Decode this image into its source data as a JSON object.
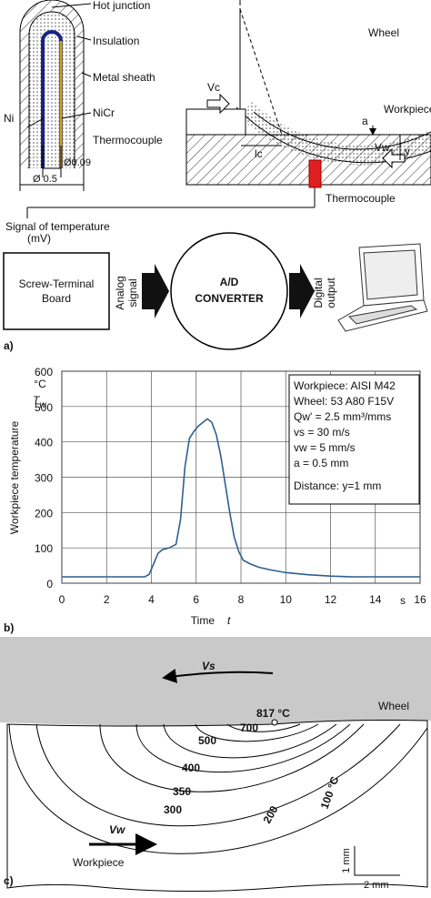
{
  "panel_a": {
    "label": "a)",
    "probe": {
      "hot_junction": "Hot junction",
      "insulation": "Insulation",
      "metal_sheath": "Metal sheath",
      "ni": "Ni",
      "nicr": "NiCr",
      "thermocouple": "Thermocouple",
      "d_inner": "Ø0.09",
      "d_outer": "Ø 0.5"
    },
    "setup": {
      "wheel": "Wheel",
      "vc": "Vc",
      "a": "a",
      "workpiece": "Workpiece",
      "y": "y",
      "lc": "lc",
      "vw": "Vw",
      "thermocouple": "Thermocouple"
    },
    "signal": [
      "Signal of temperature",
      "(mV)"
    ],
    "board": [
      "Screw-Terminal",
      "Board"
    ],
    "analog": [
      "Analog",
      "signal"
    ],
    "converter": [
      "A/D",
      "CONVERTER"
    ],
    "digital": [
      "Digital",
      "output"
    ]
  },
  "chart_data": {
    "type": "line",
    "label": "b)",
    "y_label": "Workpiece  temperature",
    "y_symbol": "T",
    "y_symbol_sub": "w",
    "y_unit": "°C",
    "x_label": "Time",
    "x_symbol": "t",
    "x_unit": "s",
    "x": [
      0,
      3.7,
      3.9,
      4.1,
      4.3,
      4.5,
      4.8,
      5.1,
      5.3,
      5.5,
      5.7,
      5.9,
      6.1,
      6.3,
      6.5,
      6.7,
      6.9,
      7.1,
      7.3,
      7.5,
      7.7,
      7.9,
      8.1,
      8.4,
      8.8,
      9.3,
      10,
      11,
      12,
      13,
      16
    ],
    "series": [
      {
        "name": "Workpiece temperature",
        "color": "#2f5f8f",
        "values": [
          18,
          18,
          25,
          55,
          85,
          95,
          100,
          110,
          180,
          330,
          410,
          430,
          445,
          455,
          465,
          455,
          420,
          360,
          280,
          200,
          130,
          90,
          65,
          55,
          45,
          38,
          30,
          24,
          20,
          18,
          18
        ]
      }
    ],
    "xlim": [
      0,
      16
    ],
    "xticks": [
      0,
      2,
      4,
      6,
      8,
      10,
      12,
      14,
      16
    ],
    "ylim": [
      0,
      600
    ],
    "yticks": [
      0,
      100,
      200,
      300,
      400,
      500,
      600
    ],
    "grid": true,
    "legend_box": [
      "Workpiece: AISI M42",
      "Wheel: 53 A80 F15V",
      "Qw' = 2.5 mm³/mms",
      "vs = 30 m/s",
      "vw = 5 mm/s",
      "a = 0.5 mm",
      "Distance: y=1 mm"
    ]
  },
  "panel_c": {
    "label": "c)",
    "vs": "Vs",
    "wheel": "Wheel",
    "max_temp": "817 °C",
    "isotherms": [
      "700",
      "500",
      "400",
      "350",
      "300",
      "200",
      "100 °C"
    ],
    "vw": "Vw",
    "workpiece": "Workpiece",
    "scale_v": "1 mm",
    "scale_h": "2 mm"
  }
}
